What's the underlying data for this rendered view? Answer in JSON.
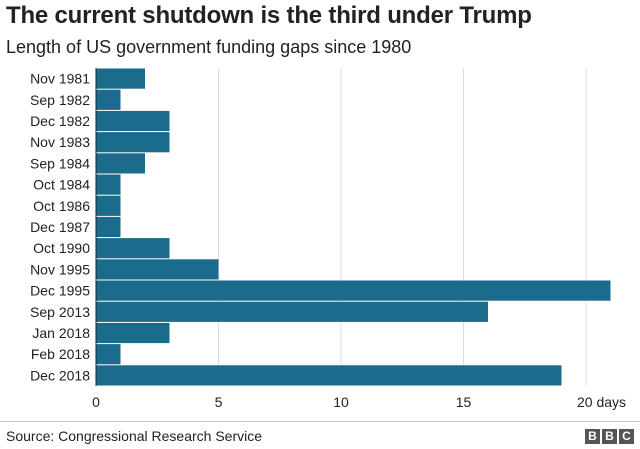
{
  "chart_data": {
    "type": "bar",
    "orientation": "horizontal",
    "title": "The current shutdown is the third under Trump",
    "subtitle": "Length of US government funding gaps since 1980",
    "categories": [
      "Nov 1981",
      "Sep 1982",
      "Dec 1982",
      "Nov 1983",
      "Sep 1984",
      "Oct 1984",
      "Oct 1986",
      "Dec 1987",
      "Oct 1990",
      "Nov 1995",
      "Dec 1995",
      "Sep 2013",
      "Jan 2018",
      "Feb 2018",
      "Dec 2018"
    ],
    "values": [
      2,
      1,
      3,
      3,
      2,
      1,
      1,
      1,
      3,
      5,
      21,
      16,
      3,
      1,
      19
    ],
    "xlim": [
      0,
      21
    ],
    "x_ticks": [
      "0",
      "5",
      "10",
      "15",
      "20 days"
    ],
    "x_tick_values": [
      0,
      5,
      10,
      15,
      20
    ],
    "xlabel": "",
    "ylabel": "",
    "grid": true,
    "bar_color": "#1b6b8c"
  },
  "footer": {
    "source": "Source: Congressional Research Service",
    "logo_letters": [
      "B",
      "B",
      "C"
    ]
  }
}
